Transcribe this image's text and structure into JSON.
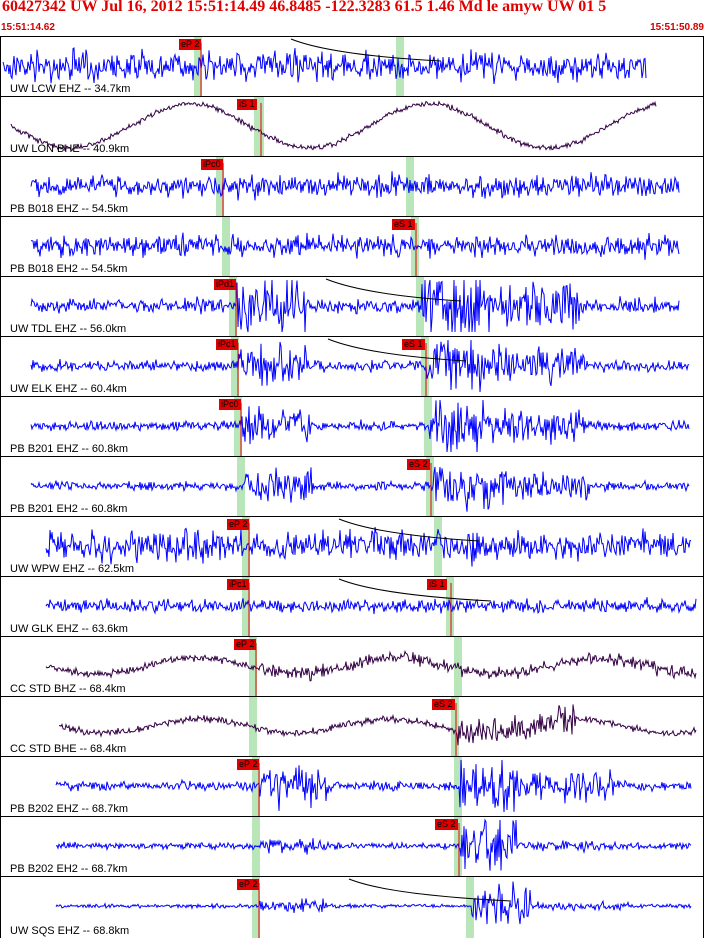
{
  "header": {
    "title": "60427342 UW Jul 16, 2012 15:51:14.49   46.8485 -122.3283 61.5 1.46 Md le amyw UW 01    5",
    "time_start": "15:51:14.62",
    "time_end": "15:51:50.89"
  },
  "colors": {
    "trace_blue": "#0000ff",
    "trace_dark": "#330044",
    "pick": "#e00000",
    "window": "#b8e6b8",
    "label_text": "#e00000"
  },
  "traces": [
    {
      "station": "UW LCW EHZ -- 34.7km",
      "color": "#0000ff",
      "p_label": "eP 2",
      "s_label": ""
    },
    {
      "station": "UW LON BHE -- 40.9km",
      "color": "#330044",
      "p_label": "",
      "s_label": "iS 1"
    },
    {
      "station": "PB B018 EHZ -- 54.5km",
      "color": "#0000ff",
      "p_label": "iPc0",
      "s_label": ""
    },
    {
      "station": "PB B018 EH2 -- 54.5km",
      "color": "#0000ff",
      "p_label": "",
      "s_label": "eS 1"
    },
    {
      "station": "UW TDL EHZ -- 56.0km",
      "color": "#0000ff",
      "p_label": "iPd1",
      "s_label": ""
    },
    {
      "station": "UW ELK EHZ -- 60.4km",
      "color": "#0000ff",
      "p_label": "iPc1",
      "s_label": "eS 1"
    },
    {
      "station": "PB B201 EHZ -- 60.8km",
      "color": "#0000ff",
      "p_label": "iPc0",
      "s_label": ""
    },
    {
      "station": "PB B201 EH2 -- 60.8km",
      "color": "#0000ff",
      "p_label": "",
      "s_label": "eS 2"
    },
    {
      "station": "UW WPW EHZ -- 62.5km",
      "color": "#0000ff",
      "p_label": "eP 2",
      "s_label": ""
    },
    {
      "station": "UW GLK EHZ -- 63.6km",
      "color": "#0000ff",
      "p_label": "iPc1",
      "s_label": "iS 1"
    },
    {
      "station": "CC STD BHZ -- 68.4km",
      "color": "#330044",
      "p_label": "eP 2",
      "s_label": ""
    },
    {
      "station": "CC STD BHE -- 68.4km",
      "color": "#330044",
      "p_label": "",
      "s_label": "eS 2"
    },
    {
      "station": "PB B202 EHZ -- 68.7km",
      "color": "#0000ff",
      "p_label": "eP 2",
      "s_label": ""
    },
    {
      "station": "PB B202 EH2 -- 68.7km",
      "color": "#0000ff",
      "p_label": "",
      "s_label": "eS 2"
    },
    {
      "station": "UW SQS EHZ -- 68.8km",
      "color": "#0000ff",
      "p_label": "eP 2",
      "s_label": ""
    }
  ]
}
